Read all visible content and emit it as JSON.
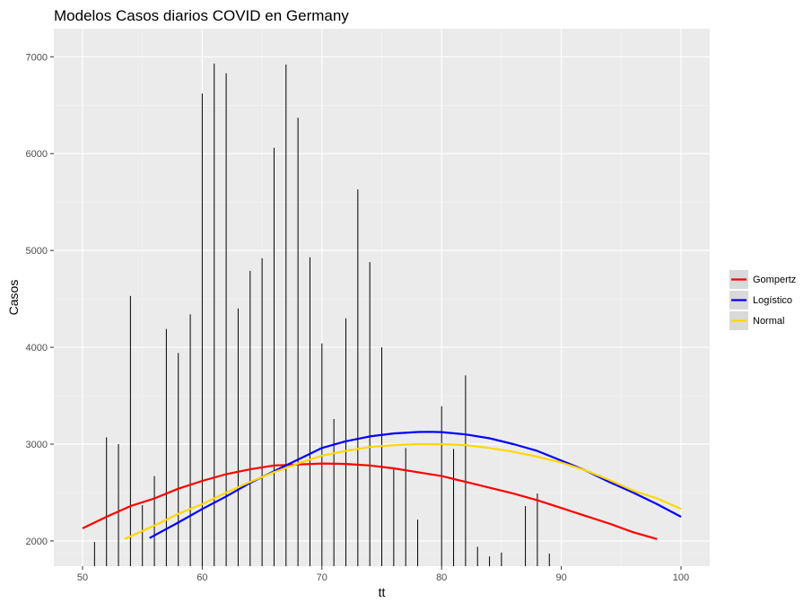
{
  "chart_data": {
    "type": "line",
    "title": "Modelos Casos diarios COVID en Germany",
    "xlabel": "tt",
    "ylabel": "Casos",
    "xlim": [
      47.6,
      102.4
    ],
    "ylim": [
      1740,
      7290
    ],
    "x_ticks": [
      50,
      60,
      70,
      80,
      90,
      100
    ],
    "y_ticks": [
      2000,
      3000,
      4000,
      5000,
      6000,
      7000
    ],
    "grid": true,
    "legend_position": "right",
    "observed": {
      "style": "vertical lines from baseline",
      "x": [
        51,
        52,
        53,
        54,
        55,
        56,
        57,
        58,
        59,
        60,
        61,
        62,
        63,
        64,
        65,
        66,
        67,
        68,
        69,
        70,
        71,
        72,
        73,
        74,
        75,
        76,
        77,
        78,
        80,
        81,
        82,
        83,
        84,
        85,
        87,
        88,
        89
      ],
      "y": [
        1990,
        3070,
        3000,
        4530,
        2370,
        2670,
        4190,
        3940,
        4340,
        6620,
        6930,
        6830,
        4400,
        4790,
        4920,
        6060,
        6920,
        6370,
        4930,
        4040,
        3260,
        4300,
        5630,
        4880,
        4000,
        2760,
        2960,
        2220,
        3390,
        2950,
        3710,
        1940,
        1840,
        1880,
        2360,
        2490,
        1870
      ]
    },
    "series": [
      {
        "name": "Gompertz",
        "color": "#ff0000",
        "x": [
          50,
          52,
          54,
          56,
          58,
          60,
          62,
          64,
          66,
          68,
          70,
          72,
          74,
          76,
          78,
          80,
          82,
          84,
          86,
          88,
          90,
          92,
          94,
          96,
          98
        ],
        "y": [
          2130,
          2250,
          2360,
          2440,
          2540,
          2620,
          2690,
          2740,
          2780,
          2790,
          2800,
          2795,
          2780,
          2750,
          2710,
          2670,
          2610,
          2550,
          2490,
          2420,
          2340,
          2260,
          2180,
          2090,
          2020
        ]
      },
      {
        "name": "Logístico",
        "color": "#0000ff",
        "x": [
          55.6,
          58,
          60,
          62,
          64,
          66,
          68,
          70,
          72,
          74,
          76,
          78,
          79,
          80,
          82,
          84,
          86,
          88,
          90,
          92,
          94,
          96,
          98,
          100
        ],
        "y": [
          2030,
          2190,
          2330,
          2460,
          2600,
          2720,
          2840,
          2960,
          3030,
          3080,
          3110,
          3125,
          3127,
          3124,
          3100,
          3060,
          3000,
          2930,
          2830,
          2730,
          2610,
          2500,
          2380,
          2250
        ]
      },
      {
        "name": "Normal",
        "color": "#ffd700",
        "x": [
          53.5,
          56,
          58,
          60,
          62,
          64,
          66,
          68,
          70,
          72,
          74,
          76,
          78,
          80,
          82,
          84,
          86,
          88,
          90,
          92,
          94,
          96,
          98,
          100
        ],
        "y": [
          2020,
          2160,
          2280,
          2380,
          2500,
          2610,
          2710,
          2800,
          2880,
          2930,
          2970,
          2990,
          3000,
          3000,
          2990,
          2960,
          2920,
          2870,
          2810,
          2730,
          2630,
          2520,
          2440,
          2330
        ]
      }
    ]
  }
}
